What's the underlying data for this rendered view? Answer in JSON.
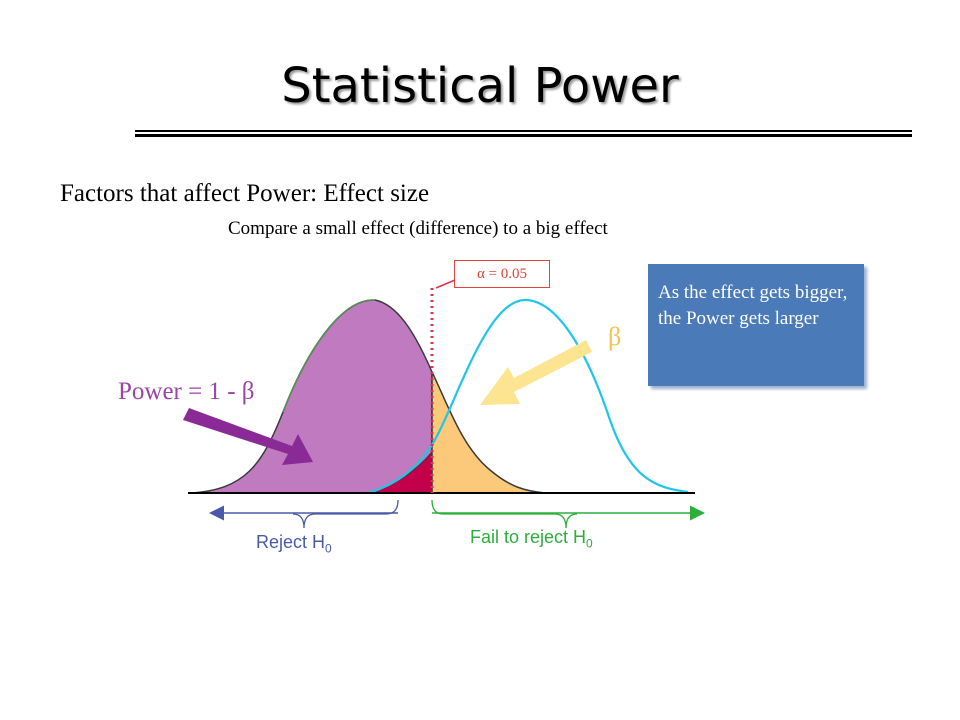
{
  "slide": {
    "title": "Statistical Power",
    "subtitle": "Factors that affect Power:  Effect size",
    "caption": "Compare a small effect (difference) to a big effect",
    "alpha_label": "α = 0.05",
    "note": "As the effect gets bigger, the Power gets larger",
    "power_label": "Power = 1 - β",
    "beta_label": "β",
    "reject_label": "Reject H",
    "reject_sub": "0",
    "fail_label": "Fail to reject H",
    "fail_sub": "0"
  },
  "colors": {
    "power_area": "#c07ac0",
    "beta_area": "#fcc97a",
    "alpha_area": "#c3004a",
    "alt_curve": "#1ec6e8",
    "alpha_line": "#e0304a",
    "power_arrow": "#8a2a96",
    "beta_arrow": "#fce490",
    "note_bg": "#4a7ab8",
    "reject_bracket": "#4a5aa8",
    "fail_bracket": "#2cae3a"
  }
}
